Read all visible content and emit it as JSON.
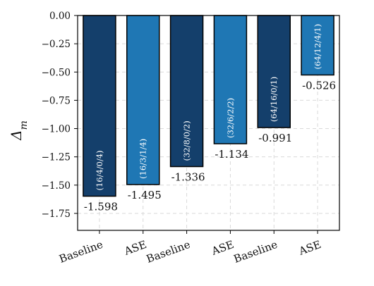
{
  "chart_data": {
    "type": "bar",
    "categories": [
      "Baseline",
      "ASE",
      "Baseline",
      "ASE",
      "Baseline",
      "ASE"
    ],
    "values": [
      -1.598,
      -1.495,
      -1.336,
      -1.134,
      -0.991,
      -0.526
    ],
    "value_labels": [
      "-1.598",
      "-1.495",
      "-1.336",
      "-1.134",
      "-0.991",
      "-0.526"
    ],
    "bar_annotations": [
      "(16/4/0/4)",
      "(16/3/1/4)",
      "(32/8/0/2)",
      "(32/6/2/2)",
      "(64/16/0/1)",
      "(64/12/4/1)"
    ],
    "ylabel": "Δm",
    "ylabel_base": "Δ",
    "ylabel_sub": "m",
    "xlabel": "",
    "title": "",
    "ylim": [
      -1.9,
      0.0
    ],
    "yticks": [
      0.0,
      -0.25,
      -0.5,
      -0.75,
      -1.0,
      -1.25,
      -1.5,
      -1.75
    ],
    "ytick_labels": [
      "0.00",
      "−0.25",
      "−0.50",
      "−0.75",
      "−1.00",
      "−1.25",
      "−1.50",
      "−1.75"
    ],
    "grid": true,
    "colors": {
      "baseline": "#143f6b",
      "ase": "#1f77b4",
      "edge": "#000000",
      "grid": "#d9d9d9"
    }
  }
}
